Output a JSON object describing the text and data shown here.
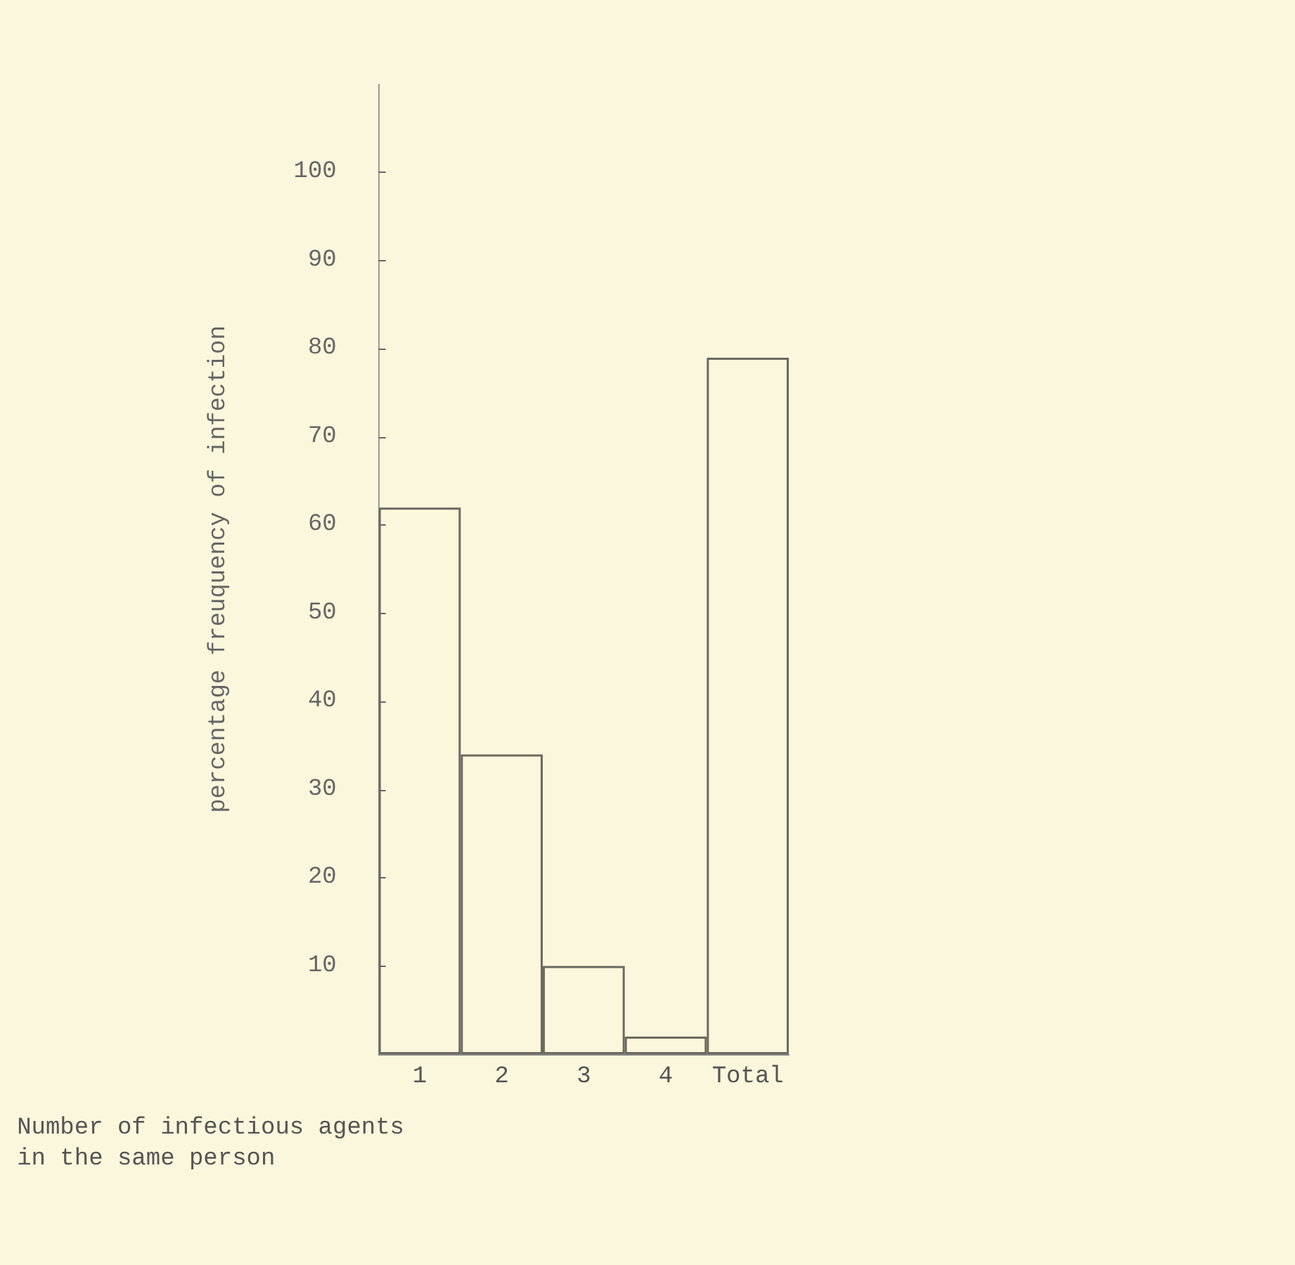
{
  "chart_data": {
    "type": "bar",
    "xlabel": "Number of infectious agents\nin the same person",
    "ylabel": "percentage freuquency of infection",
    "categories": [
      "1",
      "2",
      "3",
      "4",
      "Total"
    ],
    "values": [
      62,
      34,
      10,
      2,
      79
    ],
    "color": "#6b6a60",
    "ylim": [
      0,
      110
    ],
    "yticks": [
      10,
      20,
      30,
      40,
      50,
      60,
      70,
      80,
      90,
      100
    ]
  }
}
